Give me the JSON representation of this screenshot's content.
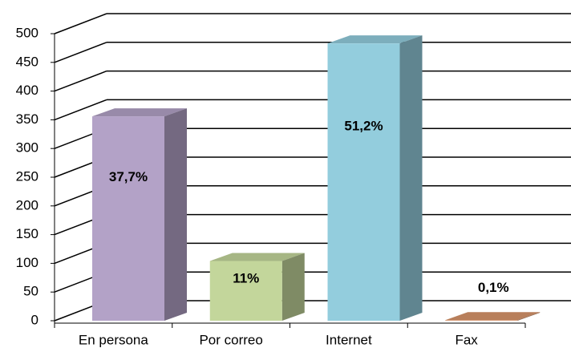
{
  "chart_data": {
    "type": "bar3d",
    "categories": [
      "En persona",
      "Por correo",
      "Internet",
      "Fax"
    ],
    "values": [
      356,
      104,
      483,
      1
    ],
    "value_labels": [
      "37,7%",
      "11%",
      "51,2%",
      "0,1%"
    ],
    "colors": [
      "#b3a2c7",
      "#c3d69b",
      "#93cddd",
      "#d9956b"
    ],
    "ylim": [
      0,
      500
    ],
    "yticks": [
      0,
      50,
      100,
      150,
      200,
      250,
      300,
      350,
      400,
      450,
      500
    ],
    "grid": true
  }
}
